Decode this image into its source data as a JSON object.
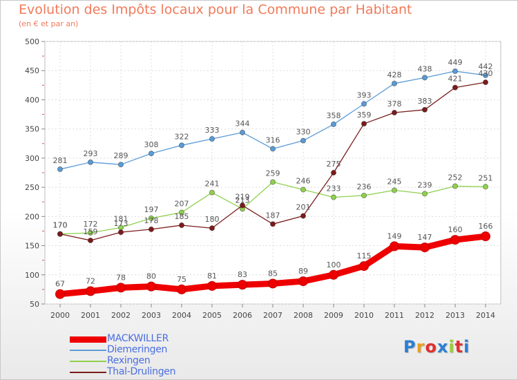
{
  "header": {
    "title": "Evolution des Impôts locaux pour la Commune par Habitant",
    "subtitle": "(en € et par an)"
  },
  "logo": {
    "text": "Proxiti",
    "colors": [
      "#2a7fd4",
      "#e8a020",
      "#e03030",
      "#2a7fd4",
      "#9acd32",
      "#e03030",
      "#2a7fd4"
    ]
  },
  "chart_data": {
    "type": "line",
    "x": [
      "2000",
      "2001",
      "2002",
      "2003",
      "2004",
      "2005",
      "2006",
      "2007",
      "2008",
      "2009",
      "2010",
      "2011",
      "2012",
      "2013",
      "2014"
    ],
    "ylim": [
      50,
      500
    ],
    "yticks": [
      "50",
      "100",
      "150",
      "200",
      "250",
      "300",
      "350",
      "400",
      "450",
      "500"
    ],
    "grid": true,
    "legend_position": "bottom-left",
    "series": [
      {
        "name": "MACKWILLER",
        "color": "#ee0000",
        "values": [
          67,
          72,
          78,
          80,
          75,
          81,
          83,
          85,
          89,
          100,
          115,
          149,
          147,
          160,
          166
        ]
      },
      {
        "name": "Diemeringen",
        "color": "#5b9bd5",
        "values": [
          281,
          293,
          289,
          308,
          322,
          333,
          344,
          316,
          330,
          358,
          393,
          428,
          438,
          449,
          442
        ]
      },
      {
        "name": "Rexingen",
        "color": "#8fd14f",
        "values": [
          170,
          172,
          181,
          197,
          207,
          241,
          213,
          259,
          246,
          233,
          236,
          245,
          239,
          252,
          251
        ]
      },
      {
        "name": "Thal-Drulingen",
        "color": "#7b1c1c",
        "values": [
          170,
          159,
          173,
          178,
          185,
          180,
          219,
          187,
          201,
          275,
          359,
          378,
          383,
          421,
          430
        ]
      }
    ]
  }
}
